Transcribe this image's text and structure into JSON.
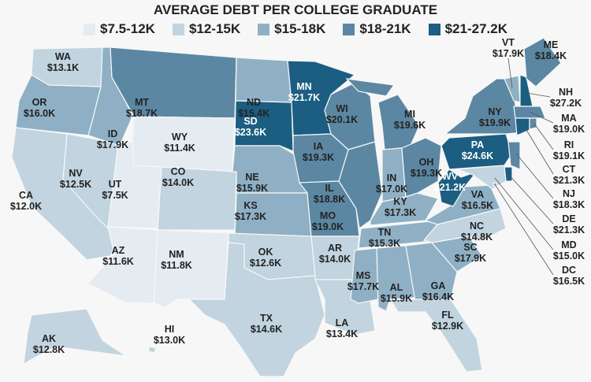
{
  "title": "AVERAGE DEBT PER COLLEGE GRADUATE",
  "legend": [
    {
      "label": "$7.5-12K",
      "color": "#e4ebf1"
    },
    {
      "label": "$12-15K",
      "color": "#c1d4df"
    },
    {
      "label": "$15-18K",
      "color": "#8fb0c4"
    },
    {
      "label": "$18-21K",
      "color": "#5b87a2"
    },
    {
      "label": "$21-27.2K",
      "color": "#1b5e81"
    }
  ],
  "states": [
    {
      "abbr": "WA",
      "value": "$13.1K",
      "bin": 1
    },
    {
      "abbr": "OR",
      "value": "$16.0K",
      "bin": 2
    },
    {
      "abbr": "CA",
      "value": "$12.0K",
      "bin": 1
    },
    {
      "abbr": "NV",
      "value": "$12.5K",
      "bin": 1
    },
    {
      "abbr": "ID",
      "value": "$17.9K",
      "bin": 2
    },
    {
      "abbr": "MT",
      "value": "$18.7K",
      "bin": 3
    },
    {
      "abbr": "WY",
      "value": "$11.4K",
      "bin": 0
    },
    {
      "abbr": "UT",
      "value": "$7.5K",
      "bin": 0
    },
    {
      "abbr": "AZ",
      "value": "$11.6K",
      "bin": 0
    },
    {
      "abbr": "CO",
      "value": "$14.0K",
      "bin": 1
    },
    {
      "abbr": "NM",
      "value": "$11.8K",
      "bin": 0
    },
    {
      "abbr": "ND",
      "value": "$15.4K",
      "bin": 2
    },
    {
      "abbr": "SD",
      "value": "$23.6K",
      "bin": 4
    },
    {
      "abbr": "NE",
      "value": "$15.9K",
      "bin": 2
    },
    {
      "abbr": "KS",
      "value": "$17.3K",
      "bin": 2
    },
    {
      "abbr": "OK",
      "value": "$12.6K",
      "bin": 1
    },
    {
      "abbr": "TX",
      "value": "$14.6K",
      "bin": 1
    },
    {
      "abbr": "MN",
      "value": "$21.7K",
      "bin": 4
    },
    {
      "abbr": "IA",
      "value": "$19.3K",
      "bin": 3
    },
    {
      "abbr": "MO",
      "value": "$19.0K",
      "bin": 3
    },
    {
      "abbr": "AR",
      "value": "$14.0K",
      "bin": 1
    },
    {
      "abbr": "LA",
      "value": "$13.4K",
      "bin": 1
    },
    {
      "abbr": "WI",
      "value": "$20.1K",
      "bin": 3
    },
    {
      "abbr": "IL",
      "value": "$18.8K",
      "bin": 3
    },
    {
      "abbr": "MI",
      "value": "$19.6K",
      "bin": 3
    },
    {
      "abbr": "IN",
      "value": "$17.0K",
      "bin": 2
    },
    {
      "abbr": "OH",
      "value": "$19.3K",
      "bin": 3
    },
    {
      "abbr": "KY",
      "value": "$17.3K",
      "bin": 2
    },
    {
      "abbr": "TN",
      "value": "$15.3K",
      "bin": 2
    },
    {
      "abbr": "MS",
      "value": "$17.7K",
      "bin": 2
    },
    {
      "abbr": "AL",
      "value": "$15.9K",
      "bin": 2
    },
    {
      "abbr": "GA",
      "value": "$16.4K",
      "bin": 2
    },
    {
      "abbr": "FL",
      "value": "$12.9K",
      "bin": 1
    },
    {
      "abbr": "SC",
      "value": "$17.9K",
      "bin": 2
    },
    {
      "abbr": "NC",
      "value": "$14.8K",
      "bin": 1
    },
    {
      "abbr": "VA",
      "value": "$16.5K",
      "bin": 2
    },
    {
      "abbr": "WV",
      "value": "$21.2K",
      "bin": 4
    },
    {
      "abbr": "PA",
      "value": "$24.6K",
      "bin": 4
    },
    {
      "abbr": "NY",
      "value": "$19.9K",
      "bin": 3
    },
    {
      "abbr": "VT",
      "value": "$17.9K",
      "bin": 2
    },
    {
      "abbr": "NH",
      "value": "$27.2K",
      "bin": 4
    },
    {
      "abbr": "ME",
      "value": "$18.4K",
      "bin": 3
    },
    {
      "abbr": "MA",
      "value": "$19.0K",
      "bin": 3
    },
    {
      "abbr": "CT",
      "value": "$21.3K",
      "bin": 4
    },
    {
      "abbr": "RI",
      "value": "$19.1K",
      "bin": 3
    },
    {
      "abbr": "NJ",
      "value": "$18.3K",
      "bin": 3
    },
    {
      "abbr": "DE",
      "value": "$21.3K",
      "bin": 4
    },
    {
      "abbr": "MD",
      "value": "$15.0K",
      "bin": 1
    },
    {
      "abbr": "DC",
      "value": "$16.5K",
      "bin": 2
    },
    {
      "abbr": "AK",
      "value": "$12.8K",
      "bin": 1
    },
    {
      "abbr": "HI",
      "value": "$13.0K",
      "bin": 1
    }
  ]
}
